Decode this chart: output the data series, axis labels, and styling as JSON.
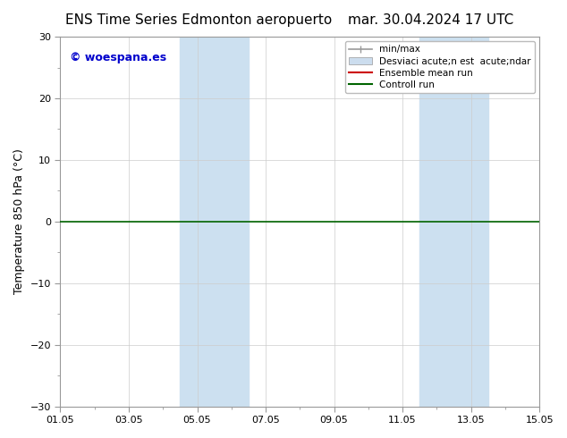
{
  "title_left": "ENS Time Series Edmonton aeropuerto",
  "title_right": "mar. 30.04.2024 17 UTC",
  "ylabel": "Temperature 850 hPa (°C)",
  "ylim": [
    -30,
    30
  ],
  "yticks": [
    -30,
    -20,
    -10,
    0,
    10,
    20,
    30
  ],
  "xlim": [
    0,
    14
  ],
  "xtick_positions": [
    0,
    2,
    4,
    6,
    8,
    10,
    12,
    14
  ],
  "xtick_labels": [
    "01.05",
    "03.05",
    "05.05",
    "07.05",
    "09.05",
    "11.05",
    "13.05",
    "15.05"
  ],
  "shaded_bands": [
    {
      "x_start": 3.5,
      "x_end": 5.5,
      "color": "#cce0f0"
    },
    {
      "x_start": 10.5,
      "x_end": 12.5,
      "color": "#cce0f0"
    }
  ],
  "hline_y": 0,
  "hline_color": "#006400",
  "copyright_text": "© woespana.es",
  "copyright_color": "#0000cc",
  "legend_label_minmax": "min/max",
  "legend_label_std": "Desviaci acute;n est  acute;ndar",
  "legend_label_ens": "Ensemble mean run",
  "legend_label_ctrl": "Controll run",
  "legend_color_minmax": "#999999",
  "legend_color_std": "#ccddee",
  "legend_color_ens": "#cc0000",
  "legend_color_ctrl": "#006400",
  "bg_color": "#ffffff",
  "grid_color": "#cccccc",
  "title_fontsize": 11,
  "tick_fontsize": 8,
  "label_fontsize": 9,
  "legend_fontsize": 7.5
}
